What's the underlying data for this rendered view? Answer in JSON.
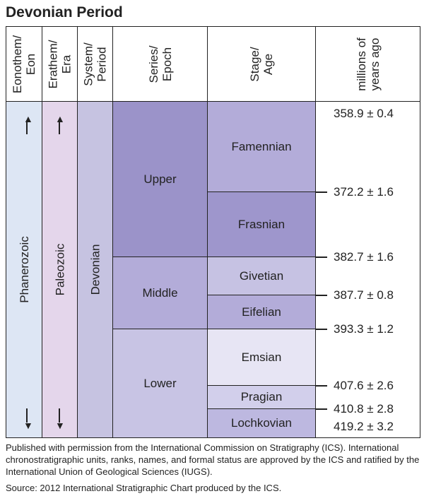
{
  "title": "Devonian Period",
  "headers": {
    "eon": "Eonothem/ Eon",
    "era": "Erathem/ Era",
    "period": "System/ Period",
    "epoch": "Series/ Epoch",
    "stage": "Stage/ Age",
    "mya": "millions of years ago"
  },
  "eon": "Phanerozoic",
  "era": "Paleozoic",
  "period": "Devonian",
  "epochs": [
    "Upper",
    "Middle",
    "Lower"
  ],
  "stages": [
    "Famennian",
    "Frasnian",
    "Givetian",
    "Eifelian",
    "Emsian",
    "Pragian",
    "Lochkovian"
  ],
  "ages": [
    "358.9 ± 0.4",
    "372.2 ± 1.6",
    "382.7 ± 1.6",
    "387.7 ± 0.8",
    "393.3 ± 1.2",
    "407.6 ± 2.6",
    "410.8 ± 2.8",
    "419.2 ± 3.2"
  ],
  "notes": [
    "Published with permission from the International Commission on Stratigraphy (ICS). International chronostratigraphic units, ranks, names, and formal status are approved by the ICS and ratified by the International Union of Geological Sciences (IUGS).",
    "Source: 2012 International Stratigraphic Chart produced by the ICS."
  ],
  "colors": {
    "eon": "#dde6f4",
    "era": "#e4d6eb",
    "period": "#c6c3e1",
    "upper": "#9b93c9",
    "middle": "#b3acd9",
    "lower": "#c8c4e4",
    "famennian": "#b3acd9",
    "frasnian": "#9e96cc",
    "givetian": "#c6c2e3",
    "eifelian": "#b3acd9",
    "emsian": "#e7e5f4",
    "pragian": "#d2cfeb",
    "lochkovian": "#bdb8e0"
  }
}
